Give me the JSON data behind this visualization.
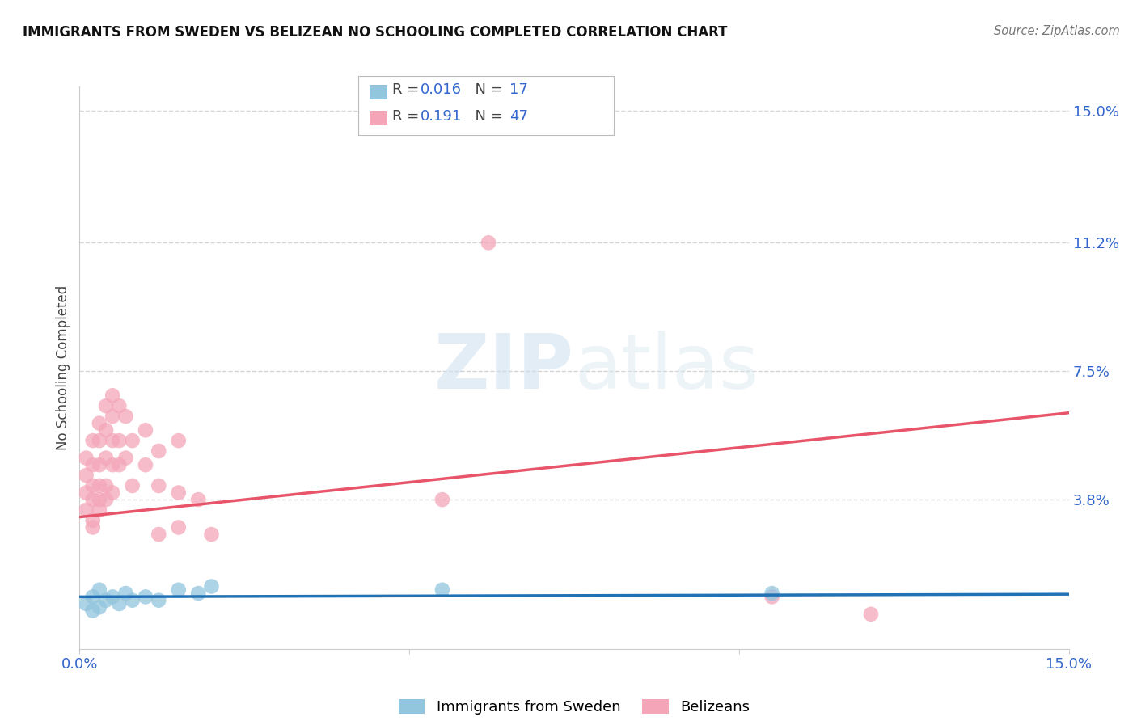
{
  "title": "IMMIGRANTS FROM SWEDEN VS BELIZEAN NO SCHOOLING COMPLETED CORRELATION CHART",
  "source": "Source: ZipAtlas.com",
  "ylabel": "No Schooling Completed",
  "xlim": [
    0.0,
    0.15
  ],
  "ylim": [
    -0.005,
    0.157
  ],
  "ytick_labels_right": [
    "15.0%",
    "11.2%",
    "7.5%",
    "3.8%"
  ],
  "ytick_values_right": [
    0.15,
    0.112,
    0.075,
    0.038
  ],
  "blue_color": "#92c5de",
  "pink_color": "#f4a6b8",
  "blue_line_color": "#2171b5",
  "pink_line_color": "#e8546a",
  "blue_scatter": [
    [
      0.001,
      0.008
    ],
    [
      0.002,
      0.006
    ],
    [
      0.002,
      0.01
    ],
    [
      0.003,
      0.007
    ],
    [
      0.003,
      0.012
    ],
    [
      0.004,
      0.009
    ],
    [
      0.005,
      0.01
    ],
    [
      0.006,
      0.008
    ],
    [
      0.007,
      0.011
    ],
    [
      0.008,
      0.009
    ],
    [
      0.01,
      0.01
    ],
    [
      0.012,
      0.009
    ],
    [
      0.015,
      0.012
    ],
    [
      0.018,
      0.011
    ],
    [
      0.02,
      0.013
    ],
    [
      0.055,
      0.012
    ],
    [
      0.105,
      0.011
    ]
  ],
  "pink_scatter": [
    [
      0.001,
      0.05
    ],
    [
      0.001,
      0.045
    ],
    [
      0.001,
      0.04
    ],
    [
      0.001,
      0.035
    ],
    [
      0.002,
      0.055
    ],
    [
      0.002,
      0.048
    ],
    [
      0.002,
      0.042
    ],
    [
      0.002,
      0.038
    ],
    [
      0.002,
      0.032
    ],
    [
      0.002,
      0.03
    ],
    [
      0.003,
      0.06
    ],
    [
      0.003,
      0.055
    ],
    [
      0.003,
      0.048
    ],
    [
      0.003,
      0.042
    ],
    [
      0.003,
      0.038
    ],
    [
      0.003,
      0.035
    ],
    [
      0.004,
      0.065
    ],
    [
      0.004,
      0.058
    ],
    [
      0.004,
      0.05
    ],
    [
      0.004,
      0.042
    ],
    [
      0.004,
      0.038
    ],
    [
      0.005,
      0.068
    ],
    [
      0.005,
      0.062
    ],
    [
      0.005,
      0.055
    ],
    [
      0.005,
      0.048
    ],
    [
      0.005,
      0.04
    ],
    [
      0.006,
      0.065
    ],
    [
      0.006,
      0.055
    ],
    [
      0.006,
      0.048
    ],
    [
      0.007,
      0.062
    ],
    [
      0.007,
      0.05
    ],
    [
      0.008,
      0.055
    ],
    [
      0.008,
      0.042
    ],
    [
      0.01,
      0.058
    ],
    [
      0.01,
      0.048
    ],
    [
      0.012,
      0.052
    ],
    [
      0.012,
      0.042
    ],
    [
      0.012,
      0.028
    ],
    [
      0.015,
      0.055
    ],
    [
      0.015,
      0.04
    ],
    [
      0.015,
      0.03
    ],
    [
      0.018,
      0.038
    ],
    [
      0.02,
      0.028
    ],
    [
      0.055,
      0.038
    ],
    [
      0.062,
      0.112
    ],
    [
      0.105,
      0.01
    ],
    [
      0.12,
      0.005
    ]
  ],
  "watermark_zip": "ZIP",
  "watermark_atlas": "atlas",
  "background_color": "#ffffff",
  "grid_color": "#d0d0d0",
  "dashed_line_color": "#b0c8e8"
}
